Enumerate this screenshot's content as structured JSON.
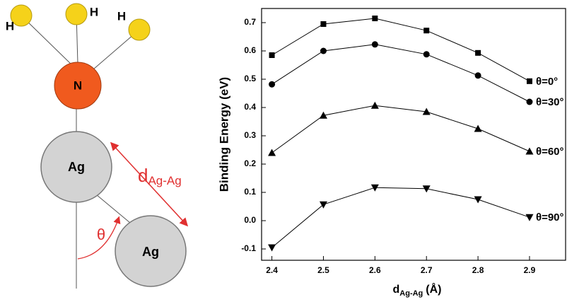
{
  "diagram": {
    "atoms": [
      "H",
      "H",
      "H",
      "N",
      "Ag",
      "Ag"
    ],
    "bond_label": "d",
    "bond_label_sub": "Ag-Ag",
    "angle_label": "θ"
  },
  "chart_data": {
    "type": "line",
    "y_label": "Binding Energy (eV)",
    "x_label": "d",
    "x_label_sub": "Ag-Ag",
    "x_label_unit": "(Å)",
    "x": [
      2.4,
      2.5,
      2.6,
      2.7,
      2.8,
      2.9
    ],
    "xlim": [
      2.38,
      2.97
    ],
    "xticks": [
      2.4,
      2.5,
      2.6,
      2.7,
      2.8,
      2.9
    ],
    "ylim": [
      -0.14,
      0.75
    ],
    "yticks": [
      0.7,
      0.6,
      0.5,
      0.4,
      0.3,
      0.2,
      0.1,
      {
        "value": 0,
        "label": "0.0"
      },
      -0.1
    ],
    "series": [
      {
        "name": "θ=0°",
        "color": "#000000",
        "marker": "square",
        "values": [
          0.585,
          0.695,
          0.715,
          0.672,
          0.593,
          0.493
        ]
      },
      {
        "name": "θ=30°",
        "color": "#000000",
        "marker": "circle",
        "values": [
          0.482,
          0.6,
          0.623,
          0.588,
          0.513,
          0.42
        ]
      },
      {
        "name": "θ=60°",
        "color": "#000000",
        "marker": "triangle-up",
        "values": [
          0.24,
          0.372,
          0.407,
          0.385,
          0.325,
          0.245
        ]
      },
      {
        "name": "θ=90°",
        "color": "#000000",
        "marker": "triangle-down",
        "values": [
          -0.095,
          0.057,
          0.117,
          0.113,
          0.075,
          0.012
        ]
      }
    ]
  }
}
